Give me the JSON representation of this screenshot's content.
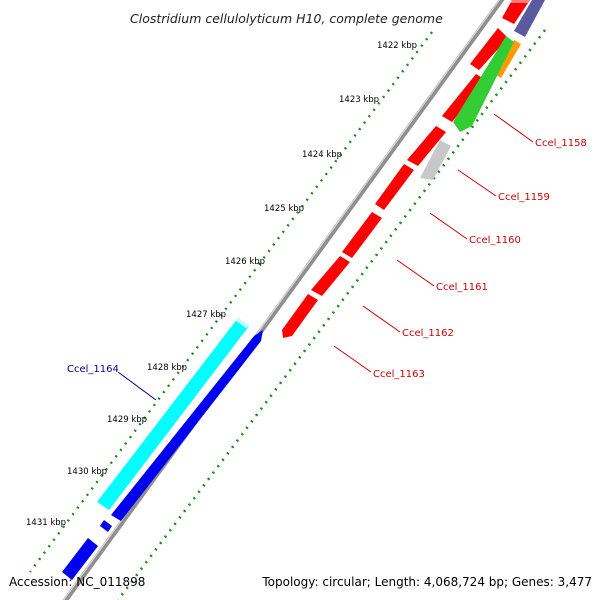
{
  "title": "Clostridium cellulolyticum H10, complete genome",
  "accession": "Accession: NC_011898",
  "topology": "Topology: circular; Length: 4,068,724 bp; Genes: 3,477",
  "colors": {
    "backbone": "#8f8f8f",
    "gc_dots": "#1a8a1a",
    "red_gene": "#ff0000",
    "red_label": "#cc0000",
    "blue_gene": "#0000ee",
    "blue_label": "#000099",
    "cyan_gene": "#00ffff",
    "green_gene": "#33cc33",
    "orange_gene": "#ff9900",
    "gray_gene": "#c8c8c8",
    "purple_gene": "#5a5aa0"
  },
  "ticks": [
    "1422 kbp",
    "1423 kbp",
    "1424 kbp",
    "1425 kbp",
    "1426 kbp",
    "1427 kbp",
    "1428 kbp",
    "1429 kbp",
    "1430 kbp",
    "1431 kbp"
  ],
  "gene_labels": [
    {
      "text": "Ccel_1158",
      "strand": "forward"
    },
    {
      "text": "Ccel_1159",
      "strand": "forward"
    },
    {
      "text": "Ccel_1160",
      "strand": "forward"
    },
    {
      "text": "Ccel_1161",
      "strand": "forward"
    },
    {
      "text": "Ccel_1162",
      "strand": "forward"
    },
    {
      "text": "Ccel_1163",
      "strand": "forward"
    },
    {
      "text": "Ccel_1164",
      "strand": "reverse"
    }
  ]
}
